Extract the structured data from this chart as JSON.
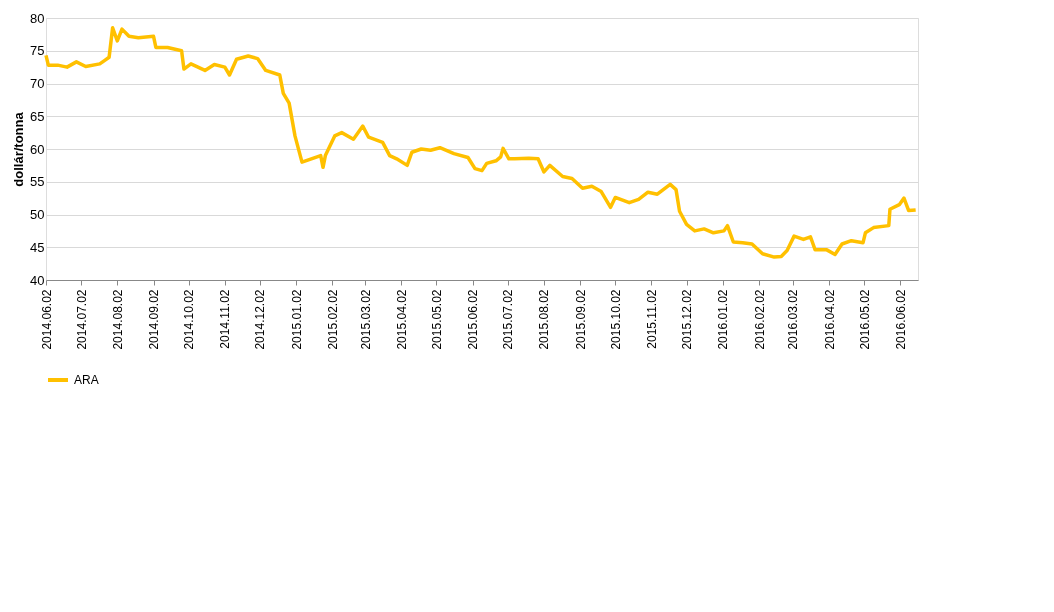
{
  "chart_data": {
    "type": "line",
    "ylabel": "dollár/tonna",
    "x": [
      "2014-06-02",
      "2014-06-04",
      "2014-06-12",
      "2014-06-20",
      "2014-06-28",
      "2014-07-06",
      "2014-07-18",
      "2014-07-22",
      "2014-07-26",
      "2014-07-29",
      "2014-08-02",
      "2014-08-06",
      "2014-08-12",
      "2014-08-20",
      "2014-09-02",
      "2014-09-04",
      "2014-09-14",
      "2014-09-26",
      "2014-09-28",
      "2014-10-04",
      "2014-10-16",
      "2014-10-24",
      "2014-11-02",
      "2014-11-06",
      "2014-11-12",
      "2014-11-22",
      "2014-11-30",
      "2014-12-07",
      "2014-12-19",
      "2014-12-22",
      "2014-12-27",
      "2015-01-01",
      "2015-01-07",
      "2015-01-15",
      "2015-01-23",
      "2015-01-25",
      "2015-01-27",
      "2015-02-04",
      "2015-02-10",
      "2015-02-20",
      "2015-02-28",
      "2015-03-05",
      "2015-03-17",
      "2015-03-23",
      "2015-03-29",
      "2015-04-07",
      "2015-04-11",
      "2015-04-19",
      "2015-04-27",
      "2015-05-05",
      "2015-05-17",
      "2015-05-29",
      "2015-06-04",
      "2015-06-10",
      "2015-06-14",
      "2015-06-22",
      "2015-06-26",
      "2015-06-28",
      "2015-07-03",
      "2015-07-08",
      "2015-07-20",
      "2015-07-28",
      "2015-08-02",
      "2015-08-07",
      "2015-08-18",
      "2015-08-26",
      "2015-09-04",
      "2015-09-12",
      "2015-09-20",
      "2015-09-28",
      "2015-10-02",
      "2015-10-14",
      "2015-10-22",
      "2015-10-30",
      "2015-11-07",
      "2015-11-18",
      "2015-11-23",
      "2015-11-26",
      "2015-12-02",
      "2015-12-09",
      "2015-12-17",
      "2015-12-25",
      "2016-01-03",
      "2016-01-06",
      "2016-01-11",
      "2016-01-19",
      "2016-01-27",
      "2016-02-05",
      "2016-02-15",
      "2016-02-21",
      "2016-02-26",
      "2016-03-03",
      "2016-03-11",
      "2016-03-17",
      "2016-03-21",
      "2016-03-31",
      "2016-04-07",
      "2016-04-13",
      "2016-04-21",
      "2016-05-01",
      "2016-05-03",
      "2016-05-10",
      "2016-05-23",
      "2016-05-24",
      "2016-06-01",
      "2016-06-05",
      "2016-06-09",
      "2016-06-15"
    ],
    "series": [
      {
        "name": "ARA",
        "color": "#ffc000",
        "values": [
          74.3,
          72.8,
          72.8,
          72.5,
          73.3,
          72.6,
          73.0,
          73.5,
          74.0,
          78.5,
          76.5,
          78.3,
          77.2,
          77.0,
          77.2,
          75.5,
          75.5,
          75.0,
          72.2,
          73.0,
          72.0,
          72.9,
          72.5,
          71.3,
          73.7,
          74.2,
          73.8,
          72.0,
          71.3,
          68.5,
          67.0,
          62.0,
          58.0,
          58.5,
          59.0,
          57.2,
          59.0,
          62.0,
          62.5,
          61.5,
          63.5,
          61.8,
          61.0,
          59.0,
          58.5,
          57.5,
          59.5,
          60.0,
          59.8,
          60.2,
          59.3,
          58.7,
          57.0,
          56.7,
          57.8,
          58.2,
          58.8,
          60.1,
          58.5,
          58.5,
          58.6,
          58.5,
          56.5,
          57.5,
          55.8,
          55.5,
          54.0,
          54.3,
          53.5,
          51.1,
          52.6,
          51.8,
          52.3,
          53.4,
          53.1,
          54.6,
          53.8,
          50.5,
          48.5,
          47.5,
          47.8,
          47.2,
          47.5,
          48.3,
          45.8,
          45.7,
          45.5,
          44.0,
          43.5,
          43.6,
          44.5,
          46.7,
          46.2,
          46.6,
          44.6,
          44.6,
          43.9,
          45.5,
          46.0,
          45.7,
          47.2,
          48.0,
          48.3,
          50.8,
          51.5,
          52.5,
          50.6,
          50.7
        ]
      }
    ],
    "xlim": [
      "2014-06-02",
      "2016-06-17"
    ],
    "xticks": [
      {
        "value": "2014-06-02",
        "label": "2014.06.02"
      },
      {
        "value": "2014-07-02",
        "label": "2014.07.02"
      },
      {
        "value": "2014-08-02",
        "label": "2014.08.02"
      },
      {
        "value": "2014-09-02",
        "label": "2014.09.02"
      },
      {
        "value": "2014-10-02",
        "label": "2014.10.02"
      },
      {
        "value": "2014-11-02",
        "label": "2014.11.02"
      },
      {
        "value": "2014-12-02",
        "label": "2014.12.02"
      },
      {
        "value": "2015-01-02",
        "label": "2015.01.02"
      },
      {
        "value": "2015-02-02",
        "label": "2015.02.02"
      },
      {
        "value": "2015-03-02",
        "label": "2015.03.02"
      },
      {
        "value": "2015-04-02",
        "label": "2015.04.02"
      },
      {
        "value": "2015-05-02",
        "label": "2015.05.02"
      },
      {
        "value": "2015-06-02",
        "label": "2015.06.02"
      },
      {
        "value": "2015-07-02",
        "label": "2015.07.02"
      },
      {
        "value": "2015-08-02",
        "label": "2015.08.02"
      },
      {
        "value": "2015-09-02",
        "label": "2015.09.02"
      },
      {
        "value": "2015-10-02",
        "label": "2015.10.02"
      },
      {
        "value": "2015-11-02",
        "label": "2015.11.02"
      },
      {
        "value": "2015-12-02",
        "label": "2015.12.02"
      },
      {
        "value": "2016-01-02",
        "label": "2016.01.02"
      },
      {
        "value": "2016-02-02",
        "label": "2016.02.02"
      },
      {
        "value": "2016-03-02",
        "label": "2016.03.02"
      },
      {
        "value": "2016-04-02",
        "label": "2016.04.02"
      },
      {
        "value": "2016-05-02",
        "label": "2016.05.02"
      },
      {
        "value": "2016-06-02",
        "label": "2016.06.02"
      }
    ],
    "ylim": [
      40,
      80
    ],
    "yticks": [
      40,
      45,
      50,
      55,
      60,
      65,
      70,
      75,
      80
    ],
    "grid": "y",
    "legend": "bottom",
    "line_style": "solid",
    "marker": "none"
  }
}
